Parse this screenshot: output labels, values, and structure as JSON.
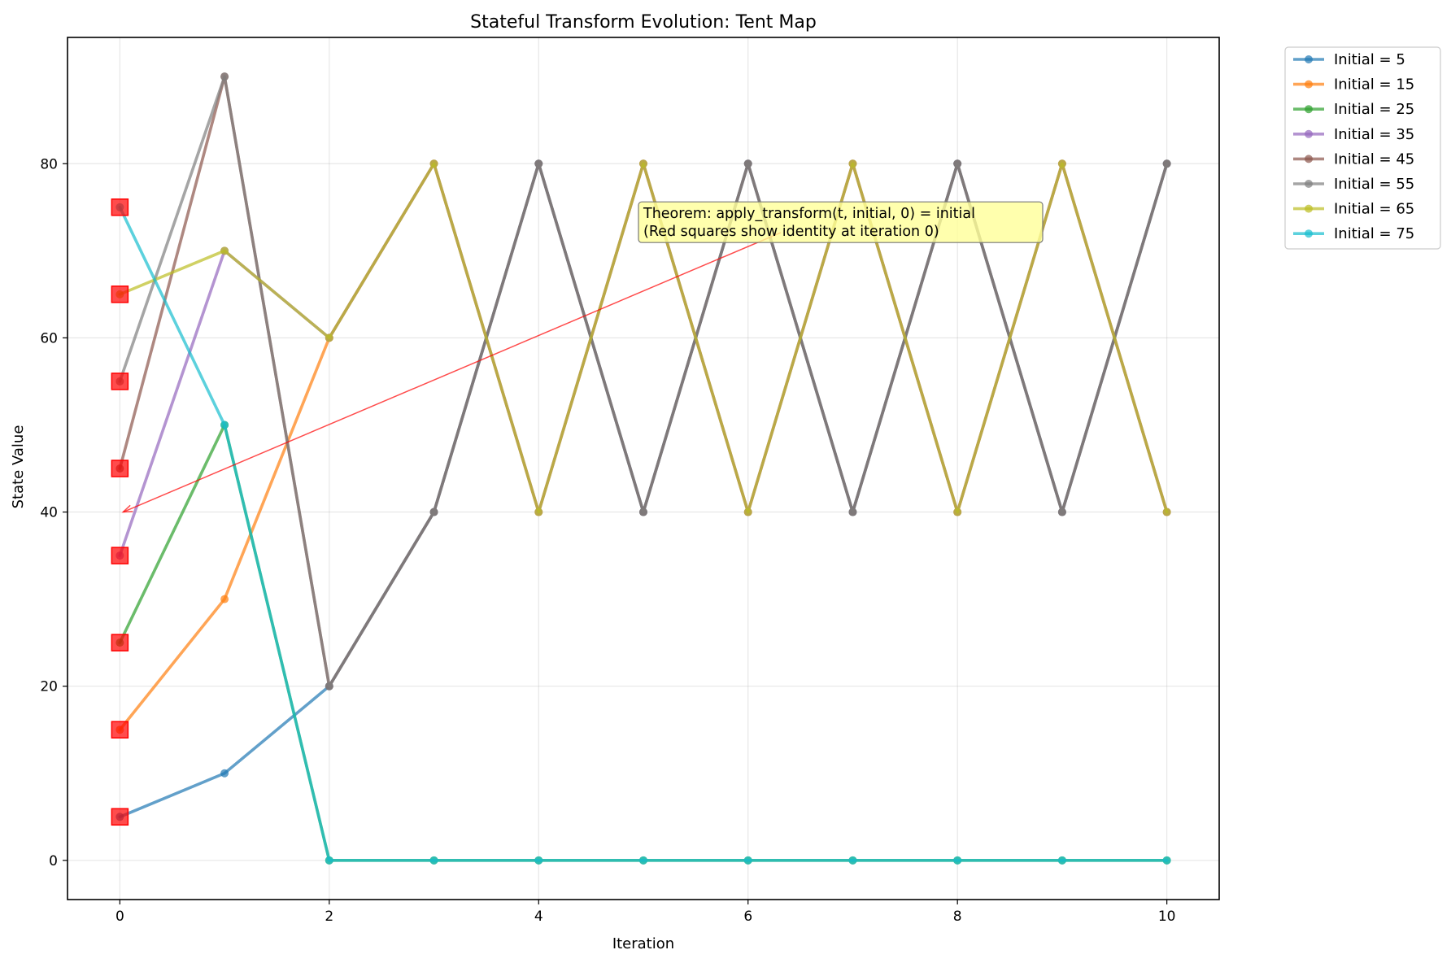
{
  "chart_data": {
    "type": "line",
    "title": "Stateful Transform Evolution: Tent Map",
    "xlabel": "Iteration",
    "ylabel": "State Value",
    "xlim": [
      -0.5,
      10.5
    ],
    "ylim": [
      -4.5,
      94.5
    ],
    "xticks": [
      0,
      2,
      4,
      6,
      8,
      10
    ],
    "yticks": [
      0,
      20,
      40,
      60,
      80
    ],
    "grid": true,
    "legend_position": "outside upper right",
    "x": [
      0,
      1,
      2,
      3,
      4,
      5,
      6,
      7,
      8,
      9,
      10
    ],
    "series": [
      {
        "name": "Initial = 5",
        "color": "#1f77b4",
        "values": [
          5,
          10,
          20,
          40,
          80,
          40,
          80,
          40,
          80,
          40,
          80
        ]
      },
      {
        "name": "Initial = 15",
        "color": "#ff7f0e",
        "values": [
          15,
          30,
          60,
          80,
          40,
          80,
          40,
          80,
          40,
          80,
          40
        ]
      },
      {
        "name": "Initial = 25",
        "color": "#2ca02c",
        "values": [
          25,
          50,
          0,
          0,
          0,
          0,
          0,
          0,
          0,
          0,
          0
        ]
      },
      {
        "name": "Initial = 35",
        "color": "#9467bd",
        "values": [
          35,
          70,
          60,
          80,
          40,
          80,
          40,
          80,
          40,
          80,
          40
        ]
      },
      {
        "name": "Initial = 45",
        "color": "#8c564b",
        "values": [
          45,
          90,
          20,
          40,
          80,
          40,
          80,
          40,
          80,
          40,
          80
        ]
      },
      {
        "name": "Initial = 55",
        "color": "#7f7f7f",
        "values": [
          55,
          90,
          20,
          40,
          80,
          40,
          80,
          40,
          80,
          40,
          80
        ]
      },
      {
        "name": "Initial = 65",
        "color": "#bcbd22",
        "values": [
          65,
          70,
          60,
          80,
          40,
          80,
          40,
          80,
          40,
          80,
          40
        ]
      },
      {
        "name": "Initial = 75",
        "color": "#17becf",
        "values": [
          75,
          50,
          0,
          0,
          0,
          0,
          0,
          0,
          0,
          0,
          0
        ]
      }
    ],
    "identity_markers": {
      "color": "#ff0000",
      "x": 0,
      "values": [
        5,
        15,
        25,
        35,
        45,
        55,
        65,
        75
      ]
    },
    "annotation": {
      "lines": [
        "Theorem: apply_transform(t, initial, 0) = initial",
        "(Red squares show identity at iteration 0)"
      ],
      "text_at": [
        5,
        73
      ],
      "arrow_to": [
        0,
        40
      ],
      "box_color": "#ffff99",
      "arrow_color": "#ff0000"
    }
  }
}
